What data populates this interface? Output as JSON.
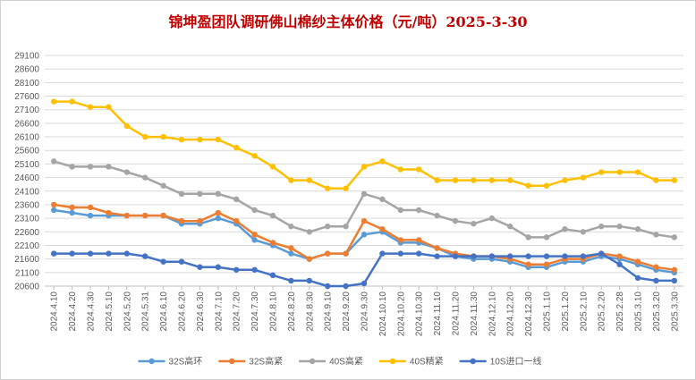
{
  "chart_data": {
    "type": "line",
    "title": "锦坤盈团队调研佛山棉纱主体价格（元/吨）2025-3-30",
    "ylim": [
      20600,
      29100
    ],
    "y_ticks": [
      "20600",
      "21100",
      "21600",
      "22100",
      "22600",
      "23100",
      "23600",
      "24100",
      "24600",
      "25100",
      "25600",
      "26100",
      "26600",
      "27100",
      "27600",
      "28100",
      "28600",
      "29100"
    ],
    "grid": true,
    "legend_position": "bottom",
    "categories": [
      "2024.4.10",
      "2024.4.20",
      "2024.4.30",
      "2024.5.10",
      "2024.5.20",
      "2024.5.31",
      "2024.6.10",
      "2024.6.20",
      "2024.6.30",
      "2024.7.10",
      "2024.7.20",
      "2024.7.30",
      "2024.8.10",
      "2024.8.20",
      "2024.8.30",
      "2024.9.10",
      "2024.9.20",
      "2024.9.30",
      "2024.10.10",
      "2024.10.20",
      "2024.10.30",
      "2024.11.10",
      "2024.11.20",
      "2024.11.30",
      "2024.12.10",
      "2024.12.20",
      "2024.12.30",
      "2025.1.10",
      "2025.1.20",
      "2025.2.10",
      "2025.2.20",
      "2025.2.28",
      "2025.3.10",
      "2025.3.20",
      "2025.3.30"
    ],
    "series": [
      {
        "name": "32S高环",
        "color": "#5b9bd5",
        "values": [
          23400,
          23300,
          23200,
          23200,
          23200,
          23200,
          23200,
          22900,
          22900,
          23100,
          22900,
          22300,
          22100,
          21800,
          21600,
          21800,
          21800,
          22500,
          22600,
          22200,
          22200,
          22000,
          21700,
          21600,
          21600,
          21500,
          21300,
          21300,
          21500,
          21500,
          21700,
          21600,
          21400,
          21200,
          21100
        ]
      },
      {
        "name": "32S高紧",
        "color": "#ed7d31",
        "values": [
          23600,
          23500,
          23500,
          23300,
          23200,
          23200,
          23200,
          23000,
          23000,
          23300,
          23000,
          22500,
          22200,
          22000,
          21600,
          21800,
          21800,
          23000,
          22700,
          22300,
          22300,
          22000,
          21800,
          21700,
          21700,
          21600,
          21400,
          21400,
          21600,
          21600,
          21800,
          21700,
          21500,
          21300,
          21200
        ]
      },
      {
        "name": "40S高紧",
        "color": "#a5a5a5",
        "values": [
          25200,
          25000,
          25000,
          25000,
          24800,
          24600,
          24300,
          24000,
          24000,
          24000,
          23800,
          23400,
          23200,
          22800,
          22600,
          22800,
          22800,
          24000,
          23800,
          23400,
          23400,
          23200,
          23000,
          22900,
          23100,
          22800,
          22400,
          22400,
          22700,
          22600,
          22800,
          22800,
          22700,
          22500,
          22400
        ]
      },
      {
        "name": "40S精紧",
        "color": "#ffc000",
        "values": [
          27400,
          27400,
          27200,
          27200,
          26500,
          26100,
          26100,
          26000,
          26000,
          26000,
          25700,
          25400,
          25000,
          24500,
          24500,
          24200,
          24200,
          25000,
          25200,
          24900,
          24900,
          24500,
          24500,
          24500,
          24500,
          24500,
          24300,
          24300,
          24500,
          24600,
          24800,
          24800,
          24800,
          24500,
          24500
        ]
      },
      {
        "name": "10S进口一线",
        "color": "#4472c4",
        "values": [
          21800,
          21800,
          21800,
          21800,
          21800,
          21700,
          21500,
          21500,
          21300,
          21300,
          21200,
          21200,
          21000,
          20800,
          20800,
          20600,
          20600,
          20700,
          21800,
          21800,
          21800,
          21700,
          21700,
          21700,
          21700,
          21700,
          21700,
          21700,
          21700,
          21700,
          21800,
          21400,
          20900,
          20800,
          20800
        ]
      }
    ]
  }
}
